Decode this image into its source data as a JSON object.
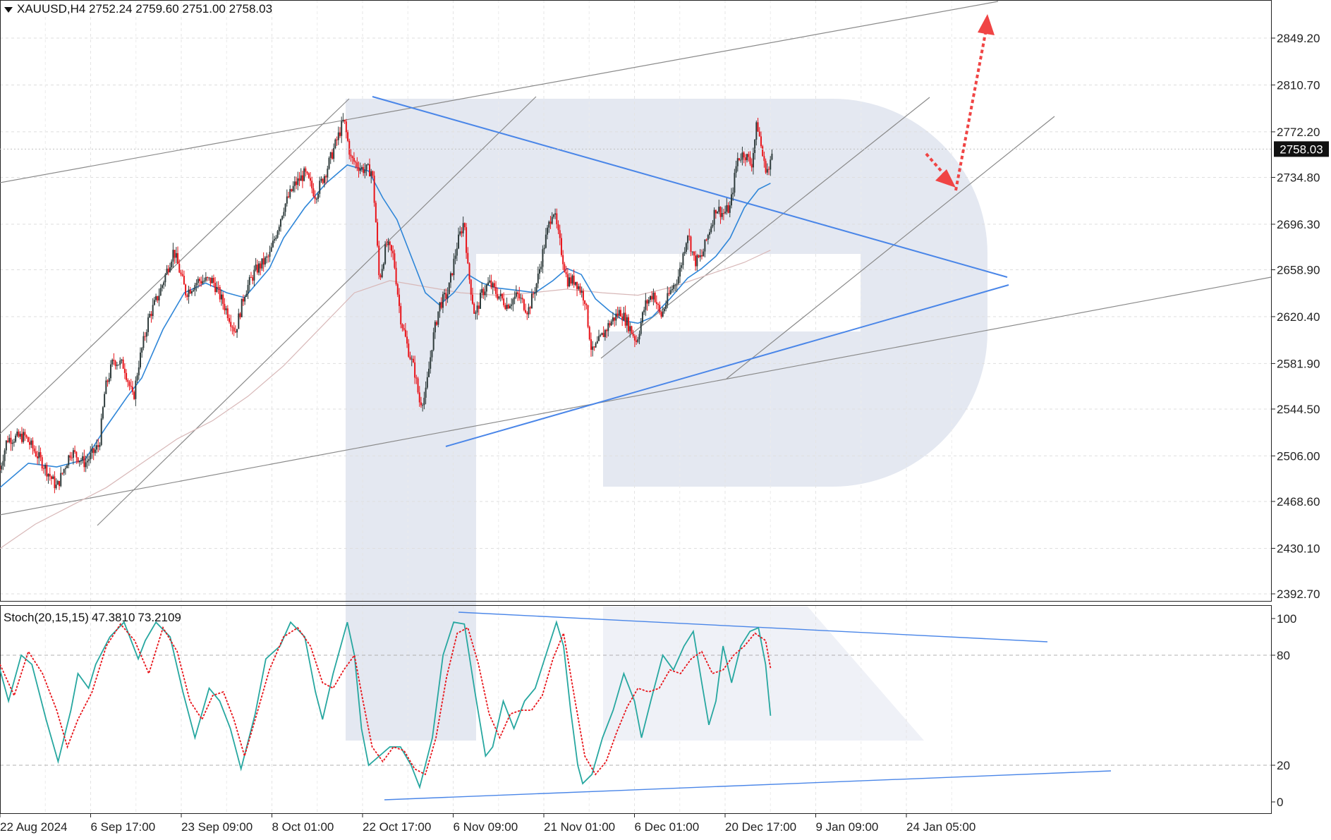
{
  "header": {
    "symbol": "XAUUSD,H4",
    "open": "2752.24",
    "high": "2759.60",
    "low": "2751.00",
    "close": "2758.03"
  },
  "price_axis": {
    "labels": [
      "2849.20",
      "2810.70",
      "2772.20",
      "2734.80",
      "2696.30",
      "2658.90",
      "2620.40",
      "2581.90",
      "2544.50",
      "2506.00",
      "2468.60",
      "2430.10",
      "2392.70"
    ],
    "current_price": "2758.03"
  },
  "stoch": {
    "title": "Stoch(20,15,15)",
    "main_value": "47.3810",
    "signal_value": "73.2109",
    "axis_labels": [
      "100",
      "80",
      "20",
      "0"
    ]
  },
  "time_axis": {
    "labels": [
      "22 Aug 2024",
      "6 Sep 17:00",
      "23 Sep 09:00",
      "8 Oct 01:00",
      "22 Oct 17:00",
      "6 Nov 09:00",
      "21 Nov 01:00",
      "6 Dec 01:00",
      "20 Dec 17:00",
      "9 Jan 09:00",
      "24 Jan 05:00"
    ]
  },
  "colors": {
    "bull": "#2e3b3b",
    "bear": "#e8141a",
    "ma_fast": "#2f86d8",
    "ma_slow": "#c8a8a8",
    "trendline": "#4a86e8",
    "channel": "#7a7a7a",
    "stoch_main": "#27a7a0",
    "stoch_signal": "#e8141a",
    "forecast": "#f04444",
    "watermark": "#e4e8f1"
  },
  "chart_data": [
    {
      "type": "candlestick",
      "title": "XAUUSD,H4",
      "ylim": [
        2392.7,
        2880
      ],
      "x": [
        "22 Aug 2024",
        "6 Sep 17:00",
        "23 Sep 09:00",
        "8 Oct 01:00",
        "22 Oct 17:00",
        "6 Nov 09:00",
        "21 Nov 01:00",
        "6 Dec 01:00",
        "20 Dec 17:00",
        "9 Jan 09:00",
        "24 Jan 05:00"
      ],
      "path_close": [
        [
          0,
          2495
        ],
        [
          10,
          2520
        ],
        [
          35,
          2522
        ],
        [
          60,
          2500
        ],
        [
          80,
          2480
        ],
        [
          100,
          2510
        ],
        [
          120,
          2500
        ],
        [
          140,
          2515
        ],
        [
          148,
          2560
        ],
        [
          160,
          2585
        ],
        [
          175,
          2580
        ],
        [
          188,
          2552
        ],
        [
          195,
          2580
        ],
        [
          210,
          2620
        ],
        [
          225,
          2640
        ],
        [
          245,
          2675
        ],
        [
          262,
          2640
        ],
        [
          280,
          2650
        ],
        [
          300,
          2650
        ],
        [
          320,
          2625
        ],
        [
          332,
          2608
        ],
        [
          345,
          2640
        ],
        [
          360,
          2658
        ],
        [
          380,
          2670
        ],
        [
          400,
          2710
        ],
        [
          415,
          2728
        ],
        [
          430,
          2738
        ],
        [
          445,
          2720
        ],
        [
          460,
          2740
        ],
        [
          475,
          2765
        ],
        [
          485,
          2782
        ],
        [
          495,
          2750
        ],
        [
          510,
          2742
        ],
        [
          525,
          2740
        ],
        [
          530,
          2700
        ],
        [
          535,
          2650
        ],
        [
          545,
          2680
        ],
        [
          555,
          2670
        ],
        [
          565,
          2620
        ],
        [
          575,
          2595
        ],
        [
          585,
          2575
        ],
        [
          592,
          2550
        ],
        [
          600,
          2555
        ],
        [
          610,
          2600
        ],
        [
          620,
          2630
        ],
        [
          632,
          2640
        ],
        [
          645,
          2680
        ],
        [
          655,
          2700
        ],
        [
          660,
          2660
        ],
        [
          670,
          2620
        ],
        [
          680,
          2640
        ],
        [
          690,
          2648
        ],
        [
          700,
          2640
        ],
        [
          715,
          2630
        ],
        [
          730,
          2638
        ],
        [
          745,
          2625
        ],
        [
          758,
          2650
        ],
        [
          768,
          2680
        ],
        [
          780,
          2710
        ],
        [
          790,
          2680
        ],
        [
          800,
          2650
        ],
        [
          812,
          2650
        ],
        [
          825,
          2635
        ],
        [
          835,
          2590
        ],
        [
          845,
          2600
        ],
        [
          860,
          2615
        ],
        [
          875,
          2625
        ],
        [
          888,
          2612
        ],
        [
          898,
          2600
        ],
        [
          910,
          2630
        ],
        [
          922,
          2640
        ],
        [
          932,
          2620
        ],
        [
          945,
          2640
        ],
        [
          958,
          2655
        ],
        [
          970,
          2690
        ],
        [
          980,
          2665
        ],
        [
          990,
          2670
        ],
        [
          1000,
          2690
        ],
        [
          1010,
          2710
        ],
        [
          1020,
          2705
        ],
        [
          1030,
          2710
        ],
        [
          1040,
          2750
        ],
        [
          1050,
          2755
        ],
        [
          1060,
          2745
        ],
        [
          1068,
          2780
        ],
        [
          1078,
          2745
        ],
        [
          1085,
          2740
        ],
        [
          1090,
          2758
        ]
      ],
      "ma_fast": [
        [
          0,
          2480
        ],
        [
          40,
          2500
        ],
        [
          80,
          2497
        ],
        [
          120,
          2503
        ],
        [
          150,
          2530
        ],
        [
          180,
          2555
        ],
        [
          200,
          2570
        ],
        [
          230,
          2610
        ],
        [
          260,
          2640
        ],
        [
          290,
          2648
        ],
        [
          320,
          2640
        ],
        [
          345,
          2636
        ],
        [
          380,
          2660
        ],
        [
          400,
          2685
        ],
        [
          430,
          2710
        ],
        [
          460,
          2730
        ],
        [
          490,
          2745
        ],
        [
          520,
          2740
        ],
        [
          540,
          2718
        ],
        [
          560,
          2700
        ],
        [
          580,
          2670
        ],
        [
          600,
          2640
        ],
        [
          620,
          2630
        ],
        [
          640,
          2640
        ],
        [
          660,
          2655
        ],
        [
          680,
          2648
        ],
        [
          700,
          2644
        ],
        [
          730,
          2642
        ],
        [
          755,
          2640
        ],
        [
          780,
          2650
        ],
        [
          800,
          2660
        ],
        [
          820,
          2655
        ],
        [
          840,
          2635
        ],
        [
          860,
          2625
        ],
        [
          880,
          2617
        ],
        [
          900,
          2615
        ],
        [
          920,
          2620
        ],
        [
          945,
          2635
        ],
        [
          970,
          2652
        ],
        [
          990,
          2660
        ],
        [
          1010,
          2670
        ],
        [
          1030,
          2685
        ],
        [
          1050,
          2710
        ],
        [
          1070,
          2725
        ],
        [
          1087,
          2730
        ]
      ],
      "ma_slow": [
        [
          0,
          2430
        ],
        [
          50,
          2450
        ],
        [
          100,
          2465
        ],
        [
          150,
          2480
        ],
        [
          200,
          2500
        ],
        [
          250,
          2520
        ],
        [
          300,
          2535
        ],
        [
          350,
          2555
        ],
        [
          400,
          2580
        ],
        [
          450,
          2610
        ],
        [
          500,
          2640
        ],
        [
          550,
          2650
        ],
        [
          600,
          2645
        ],
        [
          650,
          2640
        ],
        [
          700,
          2638
        ],
        [
          750,
          2640
        ],
        [
          800,
          2643
        ],
        [
          850,
          2640
        ],
        [
          900,
          2638
        ],
        [
          950,
          2645
        ],
        [
          1000,
          2655
        ],
        [
          1050,
          2665
        ],
        [
          1087,
          2675
        ]
      ]
    },
    {
      "type": "line",
      "title": "Stoch(20,15,15)",
      "ylim": [
        0,
        100
      ],
      "series": [
        {
          "name": "main",
          "points": [
            [
              0,
              72
            ],
            [
              12,
              55
            ],
            [
              30,
              80
            ],
            [
              45,
              75
            ],
            [
              65,
              45
            ],
            [
              82,
              22
            ],
            [
              100,
              50
            ],
            [
              110,
              70
            ],
            [
              125,
              62
            ],
            [
              135,
              75
            ],
            [
              155,
              90
            ],
            [
              175,
              98
            ],
            [
              195,
              78
            ],
            [
              205,
              88
            ],
            [
              220,
              98
            ],
            [
              240,
              90
            ],
            [
              258,
              60
            ],
            [
              275,
              35
            ],
            [
              295,
              62
            ],
            [
              310,
              55
            ],
            [
              325,
              40
            ],
            [
              340,
              18
            ],
            [
              360,
              48
            ],
            [
              375,
              78
            ],
            [
              395,
              85
            ],
            [
              410,
              98
            ],
            [
              430,
              90
            ],
            [
              445,
              60
            ],
            [
              455,
              45
            ],
            [
              470,
              70
            ],
            [
              490,
              98
            ],
            [
              500,
              80
            ],
            [
              510,
              40
            ],
            [
              520,
              20
            ],
            [
              535,
              25
            ],
            [
              550,
              30
            ],
            [
              565,
              30
            ],
            [
              580,
              20
            ],
            [
              592,
              8
            ],
            [
              610,
              35
            ],
            [
              625,
              80
            ],
            [
              640,
              98
            ],
            [
              655,
              97
            ],
            [
              670,
              60
            ],
            [
              685,
              25
            ],
            [
              695,
              30
            ],
            [
              710,
              55
            ],
            [
              725,
              40
            ],
            [
              740,
              55
            ],
            [
              755,
              62
            ],
            [
              770,
              80
            ],
            [
              785,
              98
            ],
            [
              795,
              85
            ],
            [
              805,
              50
            ],
            [
              815,
              20
            ],
            [
              822,
              10
            ],
            [
              835,
              15
            ],
            [
              850,
              35
            ],
            [
              865,
              50
            ],
            [
              880,
              70
            ],
            [
              895,
              55
            ],
            [
              905,
              35
            ],
            [
              918,
              55
            ],
            [
              935,
              80
            ],
            [
              950,
              72
            ],
            [
              965,
              85
            ],
            [
              978,
              93
            ],
            [
              990,
              65
            ],
            [
              1000,
              42
            ],
            [
              1010,
              55
            ],
            [
              1020,
              85
            ],
            [
              1032,
              65
            ],
            [
              1045,
              85
            ],
            [
              1058,
              93
            ],
            [
              1070,
              95
            ],
            [
              1080,
              75
            ],
            [
              1087,
              47
            ]
          ]
        },
        {
          "name": "signal",
          "points": [
            [
              0,
              75
            ],
            [
              20,
              58
            ],
            [
              40,
              82
            ],
            [
              60,
              70
            ],
            [
              80,
              50
            ],
            [
              95,
              30
            ],
            [
              110,
              45
            ],
            [
              130,
              60
            ],
            [
              150,
              85
            ],
            [
              170,
              97
            ],
            [
              190,
              88
            ],
            [
              210,
              70
            ],
            [
              230,
              95
            ],
            [
              250,
              82
            ],
            [
              268,
              55
            ],
            [
              285,
              45
            ],
            [
              300,
              58
            ],
            [
              315,
              60
            ],
            [
              330,
              45
            ],
            [
              345,
              25
            ],
            [
              360,
              45
            ],
            [
              380,
              72
            ],
            [
              400,
              90
            ],
            [
              420,
              95
            ],
            [
              438,
              85
            ],
            [
              455,
              65
            ],
            [
              470,
              62
            ],
            [
              485,
              72
            ],
            [
              500,
              80
            ],
            [
              512,
              55
            ],
            [
              525,
              30
            ],
            [
              540,
              22
            ],
            [
              555,
              30
            ],
            [
              570,
              28
            ],
            [
              585,
              18
            ],
            [
              600,
              15
            ],
            [
              615,
              35
            ],
            [
              630,
              68
            ],
            [
              645,
              92
            ],
            [
              660,
              95
            ],
            [
              675,
              75
            ],
            [
              690,
              48
            ],
            [
              705,
              35
            ],
            [
              720,
              48
            ],
            [
              735,
              50
            ],
            [
              750,
              50
            ],
            [
              765,
              58
            ],
            [
              780,
              78
            ],
            [
              795,
              92
            ],
            [
              810,
              58
            ],
            [
              825,
              25
            ],
            [
              840,
              15
            ],
            [
              855,
              22
            ],
            [
              870,
              38
            ],
            [
              885,
              52
            ],
            [
              900,
              62
            ],
            [
              915,
              60
            ],
            [
              930,
              62
            ],
            [
              945,
              72
            ],
            [
              960,
              70
            ],
            [
              975,
              78
            ],
            [
              990,
              82
            ],
            [
              1005,
              70
            ],
            [
              1020,
              72
            ],
            [
              1035,
              80
            ],
            [
              1050,
              85
            ],
            [
              1065,
              92
            ],
            [
              1080,
              88
            ],
            [
              1087,
              73
            ]
          ]
        }
      ],
      "levels": [
        80,
        20
      ]
    }
  ]
}
